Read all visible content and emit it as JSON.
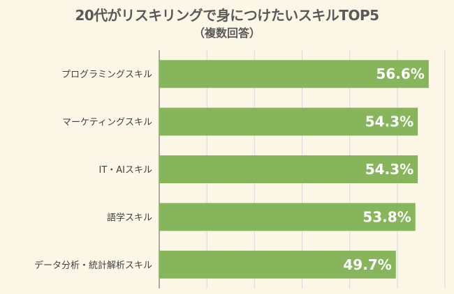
{
  "chart_data": {
    "type": "bar",
    "orientation": "horizontal",
    "title": "20代がリスキリングで身につけたいスキルTOP5",
    "subtitle": "（複数回答）",
    "categories": [
      "プログラミングスキル",
      "マーケティングスキル",
      "IT・AIスキル",
      "語学スキル",
      "データ分析・統計解析スキル"
    ],
    "values": [
      56.6,
      54.3,
      54.3,
      53.8,
      49.7
    ],
    "value_labels": [
      "56.6%",
      "54.3%",
      "54.3%",
      "53.8%",
      "49.7%"
    ],
    "xlim": [
      0,
      60
    ],
    "grid": true,
    "colors": {
      "bar": "#86b55c",
      "grid": "#d9d9d9",
      "axis": "#595959",
      "background": "#fbf6e6"
    }
  }
}
